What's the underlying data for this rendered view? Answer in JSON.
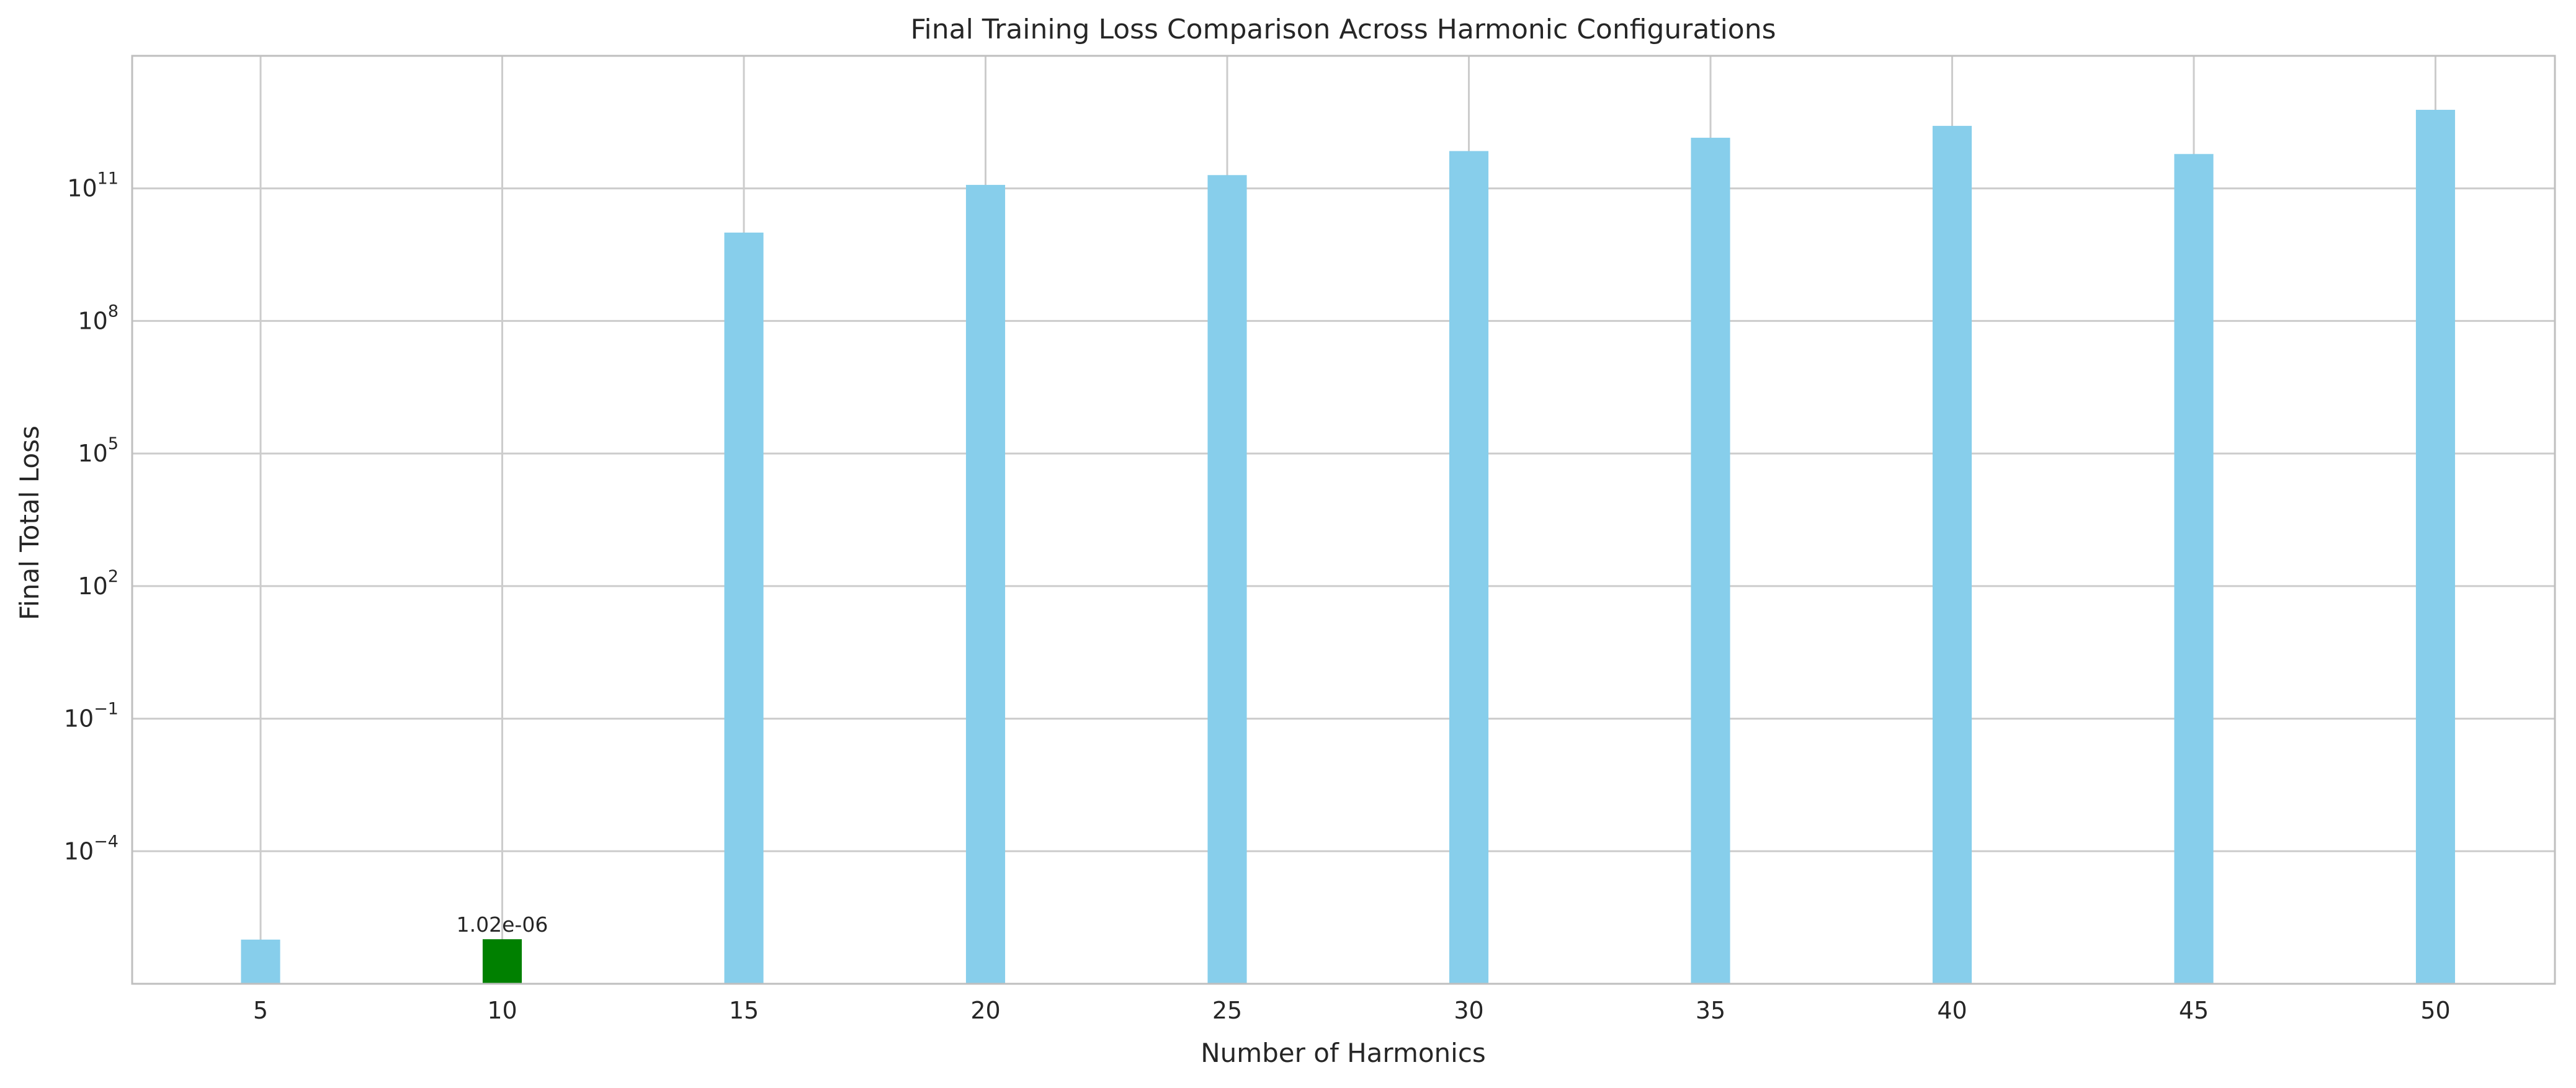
{
  "chart_data": {
    "type": "bar",
    "title": "Final Training Loss Comparison Across Harmonic Configurations",
    "xlabel": "Number of Harmonics",
    "ylabel": "Final Total Loss",
    "yscale": "log",
    "ylim": [
      1e-07,
      100000000000000.0
    ],
    "yticks": [
      {
        "base": "10",
        "exp": "11",
        "value": 100000000000.0
      },
      {
        "base": "10",
        "exp": "8",
        "value": 100000000.0
      },
      {
        "base": "10",
        "exp": "5",
        "value": 100000.0
      },
      {
        "base": "10",
        "exp": "2",
        "value": 100.0
      },
      {
        "base": "10",
        "exp": "−1",
        "value": 0.1
      },
      {
        "base": "10",
        "exp": "−4",
        "value": 0.0001
      }
    ],
    "grid": true,
    "categories": [
      "5",
      "10",
      "15",
      "20",
      "25",
      "30",
      "35",
      "40",
      "45",
      "50"
    ],
    "values": [
      1e-06,
      1.02e-06,
      10000000000.0,
      120000000000.0,
      200000000000.0,
      700000000000.0,
      1400000000000.0,
      2600000000000.0,
      600000000000.0,
      6000000000000.0
    ],
    "highlight_index": 1,
    "annotations": [
      {
        "index": 1,
        "text": "1.02e-06"
      }
    ],
    "colors": {
      "bar": "#87CEEB",
      "highlight": "#008000",
      "grid": "#cccccc",
      "spine": "#bfbfbf"
    }
  }
}
